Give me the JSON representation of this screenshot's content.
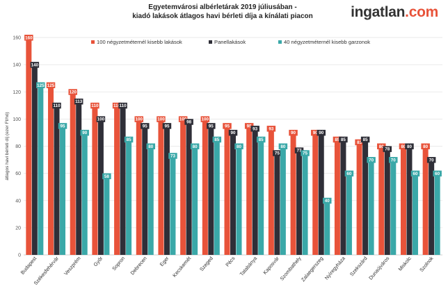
{
  "title": {
    "line1": "Egyetemvárosi albérletárak  2019 júliusában -",
    "line2": "kiadó lakások átlagos havi bérleti díja a kínálati piacon"
  },
  "brand": {
    "name": "ingatlan",
    "domain": ".com"
  },
  "chart_data": {
    "type": "bar",
    "ylabel": "átlagos havi bérleti díj (ezer Ft/hó)",
    "ylim": [
      0,
      160
    ],
    "yticks": [
      0,
      20,
      40,
      60,
      80,
      100,
      120,
      140,
      160
    ],
    "grid": true,
    "legend_position": "top",
    "categories": [
      "Budapest",
      "Székesfehérvár",
      "Veszprém",
      "Győr",
      "Sopron",
      "Debrecen",
      "Eger",
      "Kecskemét",
      "Szeged",
      "Pécs",
      "Tatabánya",
      "Kaposvár",
      "Szombathely",
      "Zalaegerszeg",
      "Nyíregyháza",
      "Szekszárd",
      "Dunaújváros",
      "Miskolc",
      "Szolnok"
    ],
    "series": [
      {
        "name": "100 négyzetméternél kisebb lakások",
        "color": "#e8533a",
        "values": [
          160,
          125,
          120,
          110,
          110,
          100,
          100,
          100,
          100,
          95,
          95,
          93,
          90,
          90,
          85,
          83,
          80,
          80,
          80
        ]
      },
      {
        "name": "Panellakások",
        "color": "#2f2f38",
        "values": [
          140,
          110,
          113,
          100,
          110,
          95,
          95,
          98,
          95,
          90,
          93,
          75,
          77,
          90,
          85,
          85,
          78,
          80,
          70
        ]
      },
      {
        "name": "40 négyzetméternél kisebb garzonok",
        "color": "#3aa8a8",
        "values": [
          125,
          95,
          90,
          58,
          85,
          80,
          73,
          80,
          85,
          80,
          85,
          80,
          75,
          40,
          60,
          70,
          70,
          60,
          60
        ]
      }
    ]
  }
}
